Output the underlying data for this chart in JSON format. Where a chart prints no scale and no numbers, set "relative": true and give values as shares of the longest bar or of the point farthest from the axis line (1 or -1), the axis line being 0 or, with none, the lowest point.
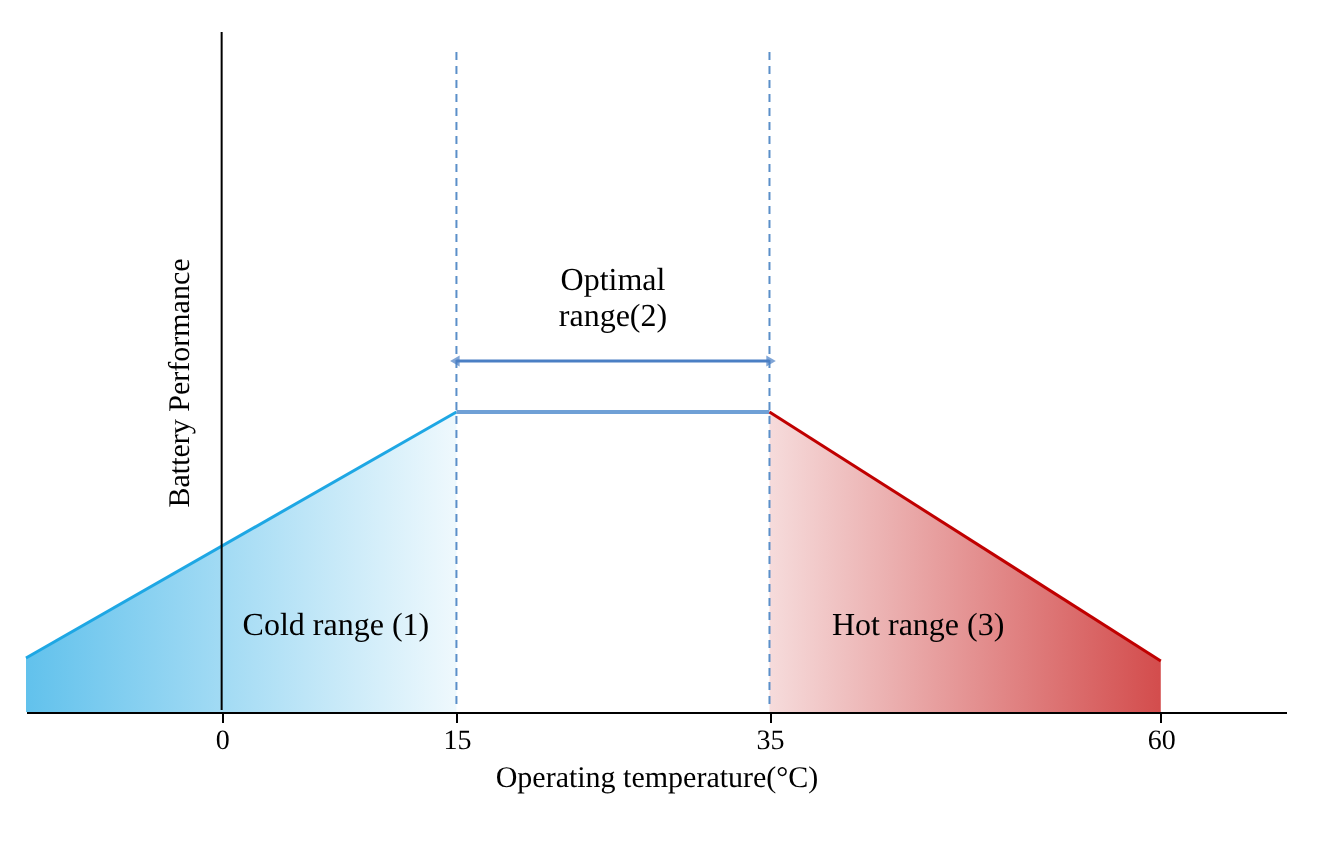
{
  "chart_data": {
    "type": "area",
    "relative": true,
    "xlabel": "Operating temperature(°C)",
    "ylabel": "Battery Performance",
    "xlim": [
      -12.5,
      68
    ],
    "xticks": [
      0,
      15,
      35,
      60
    ],
    "series": [
      {
        "color": "#1ea7e4",
        "x": [
          -12.5,
          15
        ],
        "values": [
          0.18,
          1
        ]
      },
      {
        "type": "line",
        "color": "#6fa0d6",
        "x": [
          15,
          35
        ],
        "values": [
          1,
          1
        ]
      },
      {
        "color": "#c00000",
        "x": [
          35,
          60
        ],
        "values": [
          1,
          0.17
        ]
      }
    ],
    "ref_lines": [
      {
        "axis": "x",
        "value": 0,
        "line_style": "solid",
        "color": "#000000"
      },
      {
        "axis": "x",
        "value": 15,
        "line_style": "dashed",
        "color": "#5b8fc9"
      },
      {
        "axis": "x",
        "value": 35,
        "line_style": "dashed",
        "color": "#5b8fc9"
      }
    ],
    "annotations": [
      "Optimal range(2)",
      "Cold range (1)",
      "Hot range (3)"
    ]
  }
}
